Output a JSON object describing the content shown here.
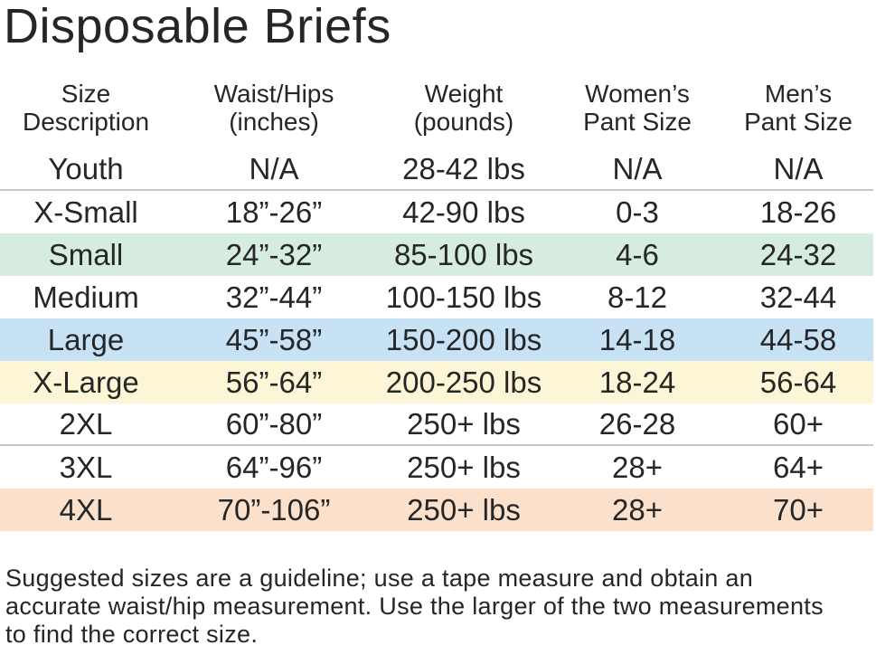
{
  "title": "Disposable Briefs",
  "table": {
    "header": [
      [
        "Size",
        "Description"
      ],
      [
        "Waist/Hips",
        "(inches)"
      ],
      [
        "Weight",
        "(pounds)"
      ],
      [
        "Women’s",
        "Pant Size"
      ],
      [
        "Men’s",
        "Pant Size"
      ]
    ],
    "rows": [
      [
        "Youth",
        "N/A",
        "28-42 lbs",
        "N/A",
        "N/A"
      ],
      [
        "X-Small",
        "18”-26”",
        "42-90 lbs",
        "0-3",
        "18-26"
      ],
      [
        "Small",
        "24”-32”",
        "85-100 lbs",
        "4-6",
        "24-32"
      ],
      [
        "Medium",
        "32”-44”",
        "100-150 lbs",
        "8-12",
        "32-44"
      ],
      [
        "Large",
        "45”-58”",
        "150-200 lbs",
        "14-18",
        "44-58"
      ],
      [
        "X-Large",
        "56”-64”",
        "200-250 lbs",
        "18-24",
        "56-64"
      ],
      [
        "2XL",
        "60”-80”",
        "250+ lbs",
        "26-28",
        "60+"
      ],
      [
        "3XL",
        "64”-96”",
        "250+ lbs",
        "28+",
        "64+"
      ],
      [
        "4XL",
        "70”-106”",
        "250+ lbs",
        "28+",
        "70+"
      ]
    ]
  },
  "footnote": "Suggested sizes are a guideline; use a tape measure and obtain an accurate waist/hip measurement. Use the larger of the two measurements to find the correct size."
}
